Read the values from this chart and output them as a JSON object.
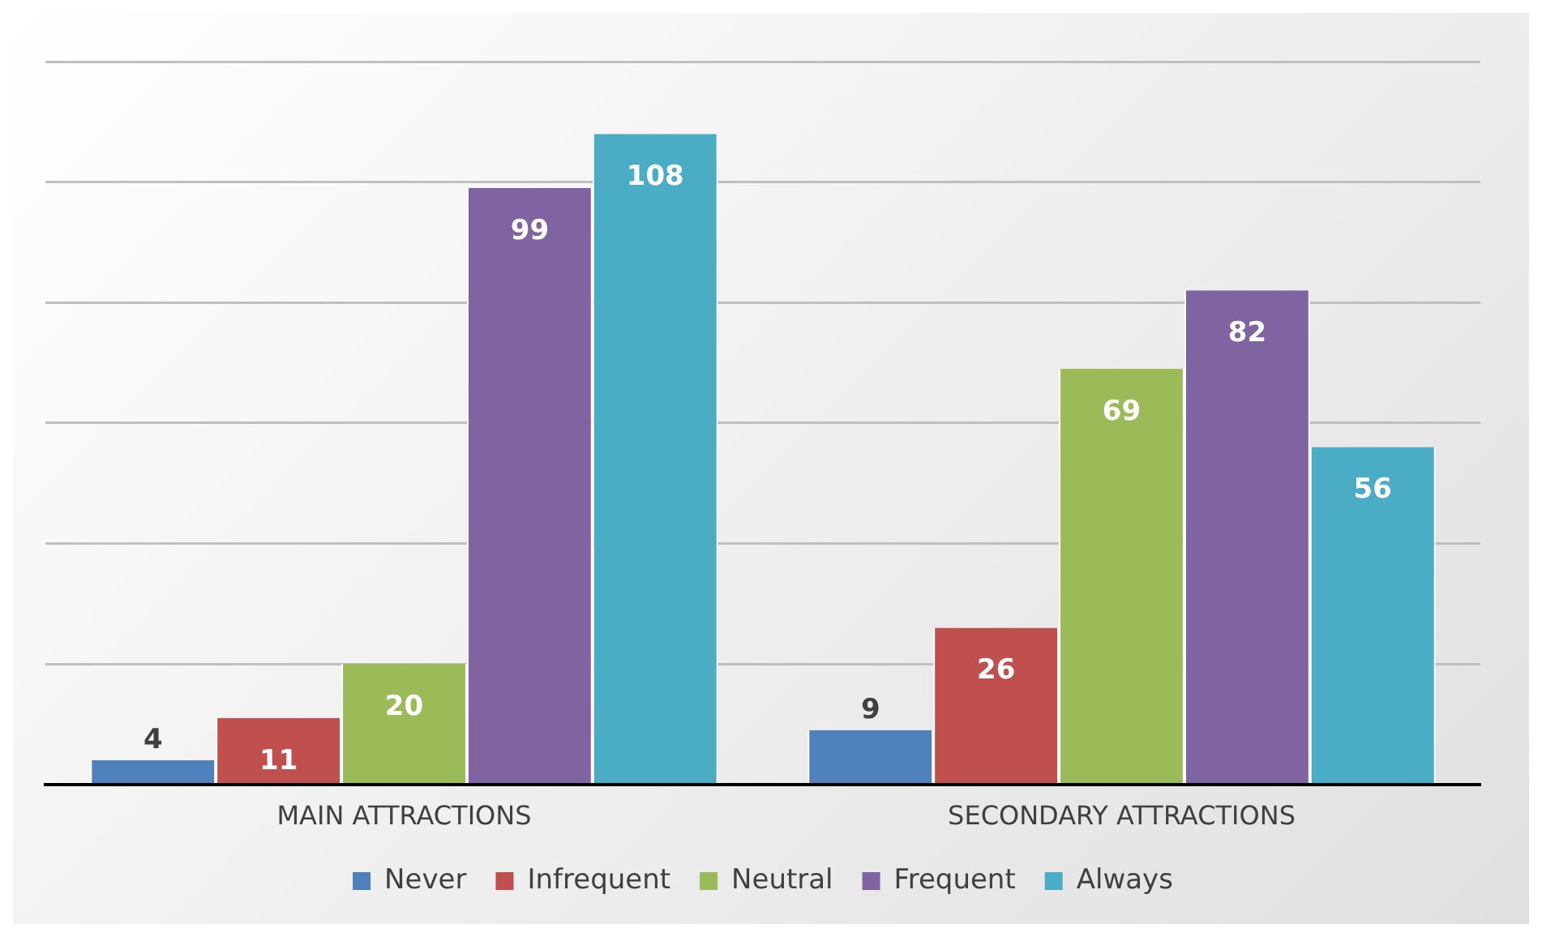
{
  "chart_data": {
    "type": "bar",
    "categories": [
      "MAIN ATTRACTIONS",
      "SECONDARY ATTRACTIONS"
    ],
    "series": [
      {
        "name": "Never",
        "color": "#4f81bd",
        "values": [
          4,
          9
        ]
      },
      {
        "name": "Infrequent",
        "color": "#c0504d",
        "values": [
          11,
          26
        ]
      },
      {
        "name": "Neutral",
        "color": "#9bbb59",
        "values": [
          20,
          69
        ]
      },
      {
        "name": "Frequent",
        "color": "#8064a2",
        "values": [
          99,
          82
        ]
      },
      {
        "name": "Always",
        "color": "#4bacc6",
        "values": [
          108,
          56
        ]
      }
    ],
    "ylim": [
      0,
      120
    ],
    "yticks": [
      {
        "value": 0,
        "label": null
      },
      {
        "value": 20,
        "label": null
      },
      {
        "value": 40,
        "label": null
      },
      {
        "value": 60,
        "label": null
      },
      {
        "value": 80,
        "label": null
      },
      {
        "value": 100,
        "label": null
      },
      {
        "value": 120,
        "label": null
      }
    ],
    "tick_labels": "x",
    "grid": "y",
    "legend": "bottom",
    "data_labels": true
  }
}
